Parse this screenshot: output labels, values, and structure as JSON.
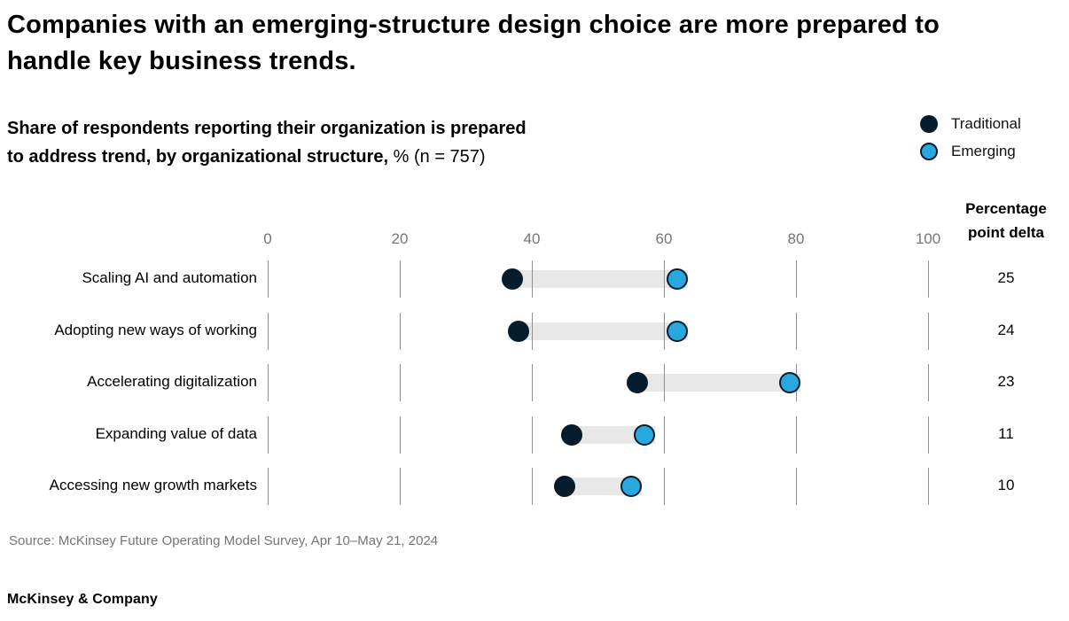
{
  "title": {
    "lines": [
      "Companies with an emerging-structure design choice are more prepared to",
      "handle key business trends."
    ]
  },
  "subtitle": {
    "line1": "Share of respondents reporting their organization is prepared",
    "line2_bold": "to address trend, by organizational structure,",
    "line2_regular": " % (n = 757)"
  },
  "legend": [
    {
      "label": "Traditional",
      "color": "#051c2c"
    },
    {
      "label": "Emerging",
      "color": "#29a8e0"
    }
  ],
  "delta_header": "Percentage point delta",
  "chart_data": {
    "type": "dumbbell",
    "categories": [
      "Scaling AI and automation",
      "Adopting new ways of working",
      "Accelerating digitalization",
      "Expanding value of data",
      "Accessing new growth markets"
    ],
    "series": [
      {
        "name": "Traditional",
        "values": [
          37,
          38,
          56,
          46,
          45
        ]
      },
      {
        "name": "Emerging",
        "values": [
          62,
          62,
          79,
          57,
          55
        ]
      }
    ],
    "deltas": [
      25,
      24,
      23,
      11,
      10
    ],
    "axis": {
      "min": 0,
      "max": 100,
      "ticks": [
        0,
        20,
        40,
        60,
        80,
        100
      ]
    },
    "value_unit": "%",
    "legend_position": "top-right",
    "grid": "per-row tick segments"
  },
  "colors": {
    "traditional": "#051c2c",
    "emerging_fill": "#29a8e0",
    "emerging_border": "#051c2c",
    "bar": "#e8e8e8",
    "tick_line": "#8f8f8f",
    "muted_text": "#757575"
  },
  "source": "Source: McKinsey Future Operating Model Survey, Apr 10–May 21, 2024",
  "footer": "McKinsey & Company"
}
